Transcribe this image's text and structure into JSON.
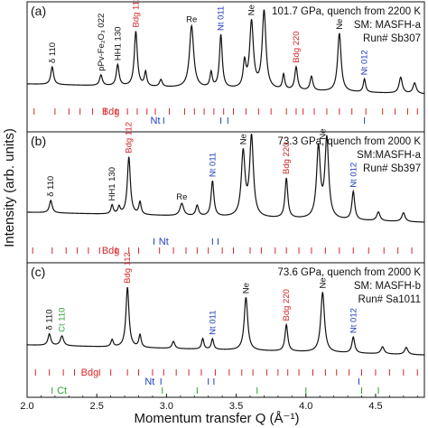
{
  "chart_data": {
    "type": "line",
    "xlabel": "Momentum transfer Q (Å⁻¹)",
    "ylabel": "Intensity (arb. units)",
    "xlim": [
      2.0,
      4.85
    ],
    "x_ticks": [
      "2.0",
      "2.5",
      "3.0",
      "3.5",
      "4.0",
      "4.5"
    ],
    "x_tick_values": [
      2.0,
      2.5,
      3.0,
      3.5,
      4.0,
      4.5
    ],
    "grid": false,
    "colors": {
      "curve": "#111111",
      "bdg": "#d62728",
      "nt": "#1f3fbf",
      "ct": "#2ca02c",
      "label": "#111111"
    },
    "panels": [
      {
        "id": "a",
        "panel_label": "(a)",
        "info": [
          "101.7 GPa, quench from 2200 K",
          "SM: MASFH-a",
          "Run# Sb307"
        ],
        "baseline": 0.1,
        "peaks": [
          {
            "q": 2.18,
            "h": 0.2,
            "w": 0.012
          },
          {
            "q": 2.53,
            "h": 0.12,
            "w": 0.012
          },
          {
            "q": 2.65,
            "h": 0.24,
            "w": 0.012
          },
          {
            "q": 2.78,
            "h": 0.62,
            "w": 0.013
          },
          {
            "q": 2.85,
            "h": 0.16,
            "w": 0.01
          },
          {
            "q": 2.96,
            "h": 0.08,
            "w": 0.012
          },
          {
            "q": 3.18,
            "h": 0.7,
            "w": 0.018
          },
          {
            "q": 3.32,
            "h": 0.17,
            "w": 0.01
          },
          {
            "q": 3.39,
            "h": 0.6,
            "w": 0.012
          },
          {
            "q": 3.56,
            "h": 0.28,
            "w": 0.012
          },
          {
            "q": 3.61,
            "h": 0.75,
            "w": 0.016
          },
          {
            "q": 3.7,
            "h": 0.88,
            "w": 0.016
          },
          {
            "q": 3.84,
            "h": 0.17,
            "w": 0.01
          },
          {
            "q": 3.93,
            "h": 0.26,
            "w": 0.012
          },
          {
            "q": 4.04,
            "h": 0.16,
            "w": 0.012
          },
          {
            "q": 4.24,
            "h": 0.66,
            "w": 0.015
          },
          {
            "q": 4.42,
            "h": 0.15,
            "w": 0.01
          },
          {
            "q": 4.68,
            "h": 0.18,
            "w": 0.014
          },
          {
            "q": 4.78,
            "h": 0.12,
            "w": 0.014
          }
        ],
        "labels": [
          {
            "text": "δ 110",
            "q": 2.18,
            "color": "label",
            "vertical": true
          },
          {
            "text": "pPv-Fe₂O₃ 022",
            "q": 2.53,
            "color": "label",
            "vertical": true
          },
          {
            "text": "HH1 130",
            "q": 2.65,
            "color": "label",
            "vertical": true
          },
          {
            "text": "Bdg 112",
            "q": 2.78,
            "color": "bdg",
            "vertical": true
          },
          {
            "text": "Re",
            "q": 3.18,
            "color": "label",
            "vertical": false
          },
          {
            "text": "Nt 011",
            "q": 3.39,
            "color": "nt",
            "vertical": true
          },
          {
            "text": "Ne",
            "q": 3.61,
            "color": "label",
            "vertical": true
          },
          {
            "text": "Bdg 220",
            "q": 3.93,
            "color": "bdg",
            "vertical": true
          },
          {
            "text": "Ne",
            "q": 4.24,
            "color": "label",
            "vertical": true
          },
          {
            "text": "Nt 012",
            "q": 4.42,
            "color": "nt",
            "vertical": true
          }
        ],
        "tick_rows": [
          {
            "phase": "Bdg",
            "label": "Bdg",
            "color": "bdg",
            "label_q": 2.6,
            "positions": [
              2.05,
              2.2,
              2.3,
              2.38,
              2.47,
              2.56,
              2.64,
              2.72,
              2.79,
              2.86,
              2.92,
              3.02,
              3.13,
              3.2,
              3.27,
              3.34,
              3.41,
              3.48,
              3.57,
              3.66,
              3.75,
              3.86,
              3.93,
              3.98,
              4.06,
              4.15,
              4.24,
              4.33,
              4.43,
              4.55,
              4.64,
              4.73,
              4.8
            ]
          },
          {
            "phase": "Nt",
            "label": "Nt",
            "color": "nt",
            "label_q": 2.92,
            "positions": [
              2.98,
              3.39,
              3.44,
              4.42
            ]
          }
        ]
      },
      {
        "id": "b",
        "panel_label": "(b)",
        "info": [
          "73.3 GPa, quench from 2000 K",
          "SM:MASFH-a",
          "Run# Sb397"
        ],
        "baseline": 0.12,
        "peaks": [
          {
            "q": 2.17,
            "h": 0.14,
            "w": 0.012
          },
          {
            "q": 2.61,
            "h": 0.1,
            "w": 0.01
          },
          {
            "q": 2.66,
            "h": 0.08,
            "w": 0.01
          },
          {
            "q": 2.73,
            "h": 0.65,
            "w": 0.013
          },
          {
            "q": 2.81,
            "h": 0.14,
            "w": 0.01
          },
          {
            "q": 3.11,
            "h": 0.14,
            "w": 0.016
          },
          {
            "q": 3.22,
            "h": 0.12,
            "w": 0.012
          },
          {
            "q": 3.33,
            "h": 0.4,
            "w": 0.012
          },
          {
            "q": 3.55,
            "h": 0.72,
            "w": 0.016
          },
          {
            "q": 3.61,
            "h": 0.9,
            "w": 0.016
          },
          {
            "q": 3.86,
            "h": 0.45,
            "w": 0.012
          },
          {
            "q": 4.09,
            "h": 0.8,
            "w": 0.016
          },
          {
            "q": 4.15,
            "h": 0.9,
            "w": 0.016
          },
          {
            "q": 4.34,
            "h": 0.32,
            "w": 0.012
          },
          {
            "q": 4.52,
            "h": 0.1,
            "w": 0.014
          },
          {
            "q": 4.7,
            "h": 0.1,
            "w": 0.014
          }
        ],
        "labels": [
          {
            "text": "δ 110",
            "q": 2.17,
            "color": "label",
            "vertical": true
          },
          {
            "text": "HH1 130",
            "q": 2.61,
            "color": "label",
            "vertical": true
          },
          {
            "text": "Bdg 112",
            "q": 2.73,
            "color": "bdg",
            "vertical": true
          },
          {
            "text": "Re",
            "q": 3.11,
            "color": "label",
            "vertical": false
          },
          {
            "text": "Nt 011",
            "q": 3.33,
            "color": "nt",
            "vertical": true
          },
          {
            "text": "Ne",
            "q": 3.55,
            "color": "label",
            "vertical": true
          },
          {
            "text": "Bdg 220",
            "q": 3.86,
            "color": "bdg",
            "vertical": true
          },
          {
            "text": "Ne",
            "q": 4.12,
            "color": "label",
            "vertical": true
          },
          {
            "text": "Nt 012",
            "q": 4.34,
            "color": "nt",
            "vertical": true
          }
        ],
        "tick_rows": [
          {
            "phase": "Nt",
            "label": "Nt",
            "color": "nt",
            "label_q": 2.98,
            "positions": [
              2.91,
              3.33,
              3.37
            ]
          },
          {
            "phase": "Bdg",
            "label": "Bdg",
            "color": "bdg",
            "label_q": 2.6,
            "positions": [
              2.04,
              2.18,
              2.28,
              2.36,
              2.44,
              2.52,
              2.64,
              2.73,
              2.8,
              2.95,
              3.05,
              3.14,
              3.22,
              3.3,
              3.4,
              3.48,
              3.6,
              3.68,
              3.78,
              3.86,
              3.95,
              4.04,
              4.14,
              4.24,
              4.34,
              4.45,
              4.56,
              4.66,
              4.76
            ]
          }
        ]
      },
      {
        "id": "c",
        "panel_label": "(c)",
        "info": [
          "73.6 GPa, quench from 2000 K",
          "SM: MASFH-b",
          "Run# Sa1011"
        ],
        "baseline": 0.1,
        "peaks": [
          {
            "q": 2.16,
            "h": 0.13,
            "w": 0.012
          },
          {
            "q": 2.25,
            "h": 0.11,
            "w": 0.014
          },
          {
            "q": 2.61,
            "h": 0.08,
            "w": 0.01
          },
          {
            "q": 2.72,
            "h": 0.68,
            "w": 0.013
          },
          {
            "q": 2.81,
            "h": 0.14,
            "w": 0.01
          },
          {
            "q": 3.05,
            "h": 0.08,
            "w": 0.012
          },
          {
            "q": 3.26,
            "h": 0.12,
            "w": 0.01
          },
          {
            "q": 3.33,
            "h": 0.12,
            "w": 0.01
          },
          {
            "q": 3.57,
            "h": 0.6,
            "w": 0.015
          },
          {
            "q": 3.86,
            "h": 0.3,
            "w": 0.012
          },
          {
            "q": 4.12,
            "h": 0.68,
            "w": 0.016
          },
          {
            "q": 4.34,
            "h": 0.18,
            "w": 0.012
          },
          {
            "q": 4.55,
            "h": 0.08,
            "w": 0.014
          },
          {
            "q": 4.72,
            "h": 0.08,
            "w": 0.014
          }
        ],
        "labels": [
          {
            "text": "δ 110",
            "q": 2.16,
            "color": "label",
            "vertical": true
          },
          {
            "text": "Ct 110",
            "q": 2.25,
            "color": "ct",
            "vertical": true
          },
          {
            "text": "Bdg 112",
            "q": 2.72,
            "color": "bdg",
            "vertical": true
          },
          {
            "text": "Nt 011",
            "q": 3.33,
            "color": "nt",
            "vertical": true
          },
          {
            "text": "Ne",
            "q": 3.57,
            "color": "label",
            "vertical": true
          },
          {
            "text": "Bdg 220",
            "q": 3.86,
            "color": "bdg",
            "vertical": true
          },
          {
            "text": "Ne",
            "q": 4.12,
            "color": "label",
            "vertical": true
          },
          {
            "text": "Nt 012",
            "q": 4.34,
            "color": "nt",
            "vertical": true
          }
        ],
        "tick_rows": [
          {
            "phase": "Bdg",
            "label": "Bdg",
            "color": "bdg",
            "label_q": 2.45,
            "positions": [
              2.06,
              2.16,
              2.26,
              2.34,
              2.52,
              2.6,
              2.72,
              2.8,
              2.9,
              2.98,
              3.07,
              3.16,
              3.25,
              3.35,
              3.45,
              3.54,
              3.62,
              3.72,
              3.8,
              3.87,
              3.95,
              4.05,
              4.14,
              4.22,
              4.31,
              4.4,
              4.5,
              4.6,
              4.7,
              4.8
            ]
          },
          {
            "phase": "Nt",
            "label": "Nt",
            "color": "nt",
            "label_q": 2.88,
            "positions": [
              2.96,
              3.3,
              3.34,
              4.38
            ]
          },
          {
            "phase": "Ct",
            "label": "Ct",
            "color": "ct",
            "label_q": 2.25,
            "positions": [
              2.18,
              2.97,
              3.22,
              3.65,
              4.0,
              4.4,
              4.52
            ]
          }
        ]
      }
    ]
  }
}
